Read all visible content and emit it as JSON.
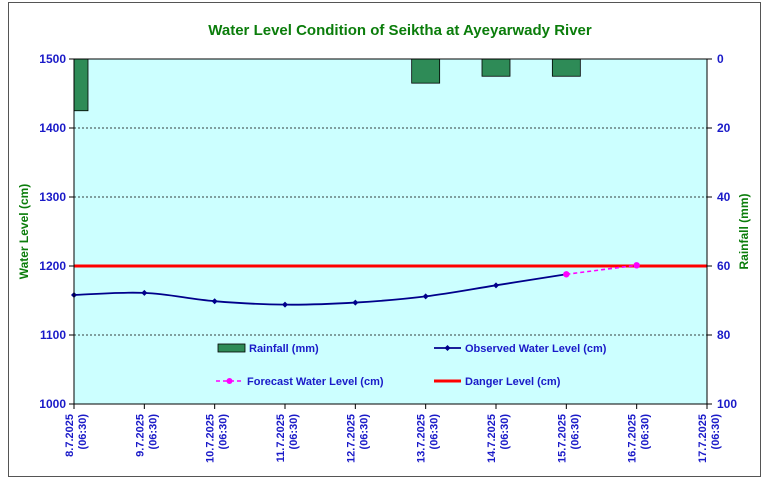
{
  "chart_data": {
    "type": "line",
    "title": "Water Level Condition of Seiktha at Ayeyarwady River",
    "ylabel": "Water Level (cm)",
    "y2label": "Rainfall (mm)",
    "ylim": [
      1000,
      1500
    ],
    "yticks": [
      1000,
      1100,
      1200,
      1300,
      1400,
      1500
    ],
    "y2lim": [
      0,
      100
    ],
    "y2ticks": [
      0,
      20,
      40,
      60,
      80,
      100
    ],
    "y2_reversed": true,
    "x": [
      "8.7.2025",
      "9.7.2025",
      "10.7.2025",
      "11.7.2025",
      "12.7.2025",
      "13.7.2025",
      "14.7.2025",
      "15.7.2025",
      "16.7.2025",
      "17.7.2025"
    ],
    "x_time": "(06:30)",
    "series": [
      {
        "name": "Rainfall (mm)",
        "kind": "bar",
        "axis": "right",
        "color": "#2e8b57",
        "values": [
          15,
          0,
          0,
          0,
          0,
          7,
          5,
          5,
          0,
          0
        ]
      },
      {
        "name": "Observed Water Level (cm)",
        "kind": "line",
        "axis": "left",
        "color": "#00008b",
        "values": [
          1158,
          1161,
          1149,
          1144,
          1147,
          1156,
          1172,
          1188,
          null,
          null
        ]
      },
      {
        "name": "Forecast Water Level (cm)",
        "kind": "dashed-line",
        "axis": "left",
        "color": "#ff00ff",
        "values": [
          null,
          null,
          null,
          null,
          null,
          null,
          null,
          1188,
          1201,
          null
        ]
      },
      {
        "name": "Danger Level (cm)",
        "kind": "constant",
        "axis": "left",
        "color": "#ff0000",
        "values": [
          1200,
          1200,
          1200,
          1200,
          1200,
          1200,
          1200,
          1200,
          1200,
          1200
        ]
      }
    ],
    "grid": true,
    "plot_background": "#ccffff",
    "legend_position": "inside-bottom"
  }
}
